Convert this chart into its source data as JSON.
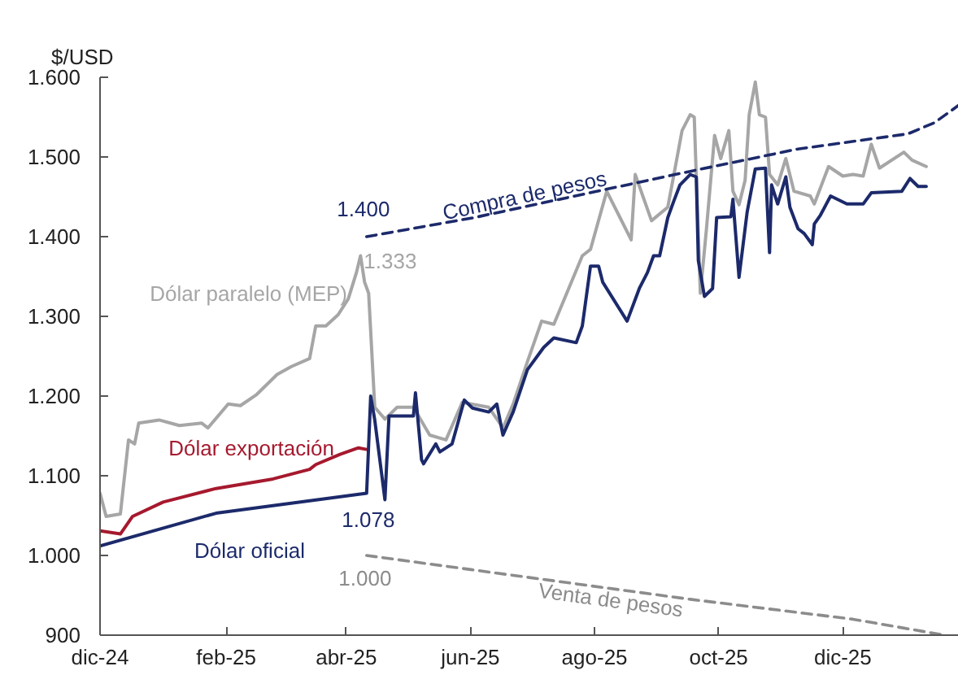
{
  "chart_data": {
    "type": "line",
    "ylabel": "$/USD",
    "xlim": [
      "2024-12-01",
      "2026-01-27"
    ],
    "xticks": [
      {
        "value": "2024-12-01",
        "label": "dic-24"
      },
      {
        "value": "2025-02-01",
        "label": "feb-25"
      },
      {
        "value": "2025-04-01",
        "label": "abr-25"
      },
      {
        "value": "2025-06-01",
        "label": "jun-25"
      },
      {
        "value": "2025-08-01",
        "label": "ago-25"
      },
      {
        "value": "2025-10-01",
        "label": "oct-25"
      },
      {
        "value": "2025-12-01",
        "label": "dic-25"
      }
    ],
    "ylim": [
      900,
      1600
    ],
    "yticks": [
      900,
      {
        "value": 1000,
        "label": "1.000"
      },
      {
        "value": 1100,
        "label": "1.100"
      },
      {
        "value": 1200,
        "label": "1.200"
      },
      {
        "value": 1300,
        "label": "1.300"
      },
      {
        "value": 1400,
        "label": "1.400"
      },
      {
        "value": 1500,
        "label": "1.500"
      },
      {
        "value": 1600,
        "label": "1.600"
      }
    ],
    "grid": false,
    "marker": "none",
    "series": [
      {
        "name": "Dólar paralelo (MEP)",
        "color": "#a6a6a6",
        "line_style": "solid",
        "x": [
          "2024-12-01",
          "2024-12-04",
          "2024-12-11",
          "2024-12-15",
          "2024-12-18",
          "2024-12-20",
          "2024-12-30",
          "2025-01-09",
          "2025-01-20",
          "2025-01-23",
          "2025-02-02",
          "2025-02-08",
          "2025-02-16",
          "2025-02-26",
          "2025-03-05",
          "2025-03-14",
          "2025-03-17",
          "2025-03-22",
          "2025-03-28",
          "2025-04-02",
          "2025-04-06",
          "2025-04-08",
          "2025-04-10",
          "2025-04-12",
          "2025-04-15",
          "2025-04-20",
          "2025-04-26",
          "2025-05-04",
          "2025-05-12",
          "2025-05-20",
          "2025-05-28",
          "2025-06-10",
          "2025-06-17",
          "2025-06-22",
          "2025-06-29",
          "2025-07-06",
          "2025-07-12",
          "2025-07-26",
          "2025-07-30",
          "2025-08-07",
          "2025-08-19",
          "2025-08-21",
          "2025-08-29",
          "2025-09-06",
          "2025-09-09",
          "2025-09-13",
          "2025-09-17",
          "2025-09-19",
          "2025-09-20",
          "2025-09-22",
          "2025-09-25",
          "2025-09-29",
          "2025-10-02",
          "2025-10-06",
          "2025-10-08",
          "2025-10-11",
          "2025-10-14",
          "2025-10-16",
          "2025-10-19",
          "2025-10-21",
          "2025-10-24",
          "2025-10-26",
          "2025-10-30",
          "2025-11-03",
          "2025-11-07",
          "2025-11-15",
          "2025-11-17",
          "2025-11-24",
          "2025-12-01",
          "2025-12-06",
          "2025-12-11",
          "2025-12-15",
          "2025-12-19",
          "2025-12-31",
          "2026-01-04",
          "2026-01-11"
        ],
        "values": [
          1078,
          1049,
          1052,
          1145,
          1140,
          1166,
          1170,
          1163,
          1166,
          1160,
          1190,
          1188,
          1202,
          1227,
          1237,
          1247,
          1288,
          1288,
          1302,
          1322,
          1355,
          1376,
          1343,
          1329,
          1186,
          1171,
          1186,
          1186,
          1151,
          1145,
          1192,
          1186,
          1160,
          1190,
          1243,
          1294,
          1290,
          1376,
          1384,
          1457,
          1396,
          1478,
          1420,
          1437,
          1478,
          1533,
          1553,
          1550,
          1475,
          1329,
          1410,
          1527,
          1498,
          1533,
          1457,
          1440,
          1471,
          1553,
          1594,
          1553,
          1550,
          1478,
          1465,
          1498,
          1457,
          1451,
          1441,
          1488,
          1476,
          1478,
          1476,
          1516,
          1486,
          1506,
          1496,
          1488
        ]
      },
      {
        "name": "Dólar exportación",
        "color": "#a6192e",
        "line_style": "solid",
        "x": [
          "2024-12-01",
          "2024-12-11",
          "2024-12-17",
          "2025-01-01",
          "2025-01-27",
          "2025-02-24",
          "2025-03-14",
          "2025-03-17",
          "2025-03-29",
          "2025-04-07",
          "2025-04-11"
        ],
        "values": [
          1031,
          1027,
          1049,
          1067,
          1084,
          1096,
          1108,
          1114,
          1127,
          1135,
          1133
        ]
      },
      {
        "name": "Dólar oficial",
        "color": "#1c2a6b",
        "line_style": "solid",
        "x": [
          "2024-12-01",
          "2025-01-27",
          "2025-04-11",
          "2025-04-13",
          "2025-04-15",
          "2025-04-20",
          "2025-04-22",
          "2025-05-04",
          "2025-05-05",
          "2025-05-08",
          "2025-05-09",
          "2025-05-15",
          "2025-05-17",
          "2025-05-23",
          "2025-05-29",
          "2025-06-02",
          "2025-06-10",
          "2025-06-14",
          "2025-06-17",
          "2025-06-22",
          "2025-06-29",
          "2025-07-07",
          "2025-07-12",
          "2025-07-23",
          "2025-07-26",
          "2025-07-30",
          "2025-08-03",
          "2025-08-05",
          "2025-08-17",
          "2025-08-23",
          "2025-08-27",
          "2025-08-30",
          "2025-09-02",
          "2025-09-06",
          "2025-09-09",
          "2025-09-12",
          "2025-09-17",
          "2025-09-20",
          "2025-09-21",
          "2025-09-24",
          "2025-09-28",
          "2025-09-30",
          "2025-10-07",
          "2025-10-08",
          "2025-10-11",
          "2025-10-15",
          "2025-10-19",
          "2025-10-24",
          "2025-10-26",
          "2025-10-27",
          "2025-10-30",
          "2025-11-03",
          "2025-11-05",
          "2025-11-09",
          "2025-11-12",
          "2025-11-16",
          "2025-11-17",
          "2025-11-20",
          "2025-11-25",
          "2025-12-03",
          "2025-12-11",
          "2025-12-15",
          "2025-12-30",
          "2026-01-03",
          "2026-01-07",
          "2026-01-11"
        ],
        "values": [
          1012,
          1053,
          1078,
          1200,
          1170,
          1070,
          1175,
          1175,
          1204,
          1120,
          1115,
          1140,
          1130,
          1140,
          1195,
          1185,
          1180,
          1190,
          1151,
          1180,
          1233,
          1261,
          1273,
          1267,
          1288,
          1363,
          1363,
          1343,
          1294,
          1335,
          1355,
          1376,
          1376,
          1424,
          1445,
          1465,
          1478,
          1475,
          1370,
          1325,
          1335,
          1424,
          1425,
          1447,
          1349,
          1431,
          1485,
          1486,
          1380,
          1465,
          1441,
          1475,
          1437,
          1410,
          1404,
          1390,
          1416,
          1427,
          1451,
          1441,
          1441,
          1455,
          1457,
          1473,
          1463,
          1463
        ]
      },
      {
        "name": "Compra de pesos",
        "color": "#1c2a6b",
        "line_style": "dashed",
        "x": [
          "2025-04-11",
          "2025-06-03",
          "2025-09-17",
          "2025-11-09",
          "2026-01-02",
          "2026-01-15",
          "2026-01-27"
        ],
        "values": [
          1400,
          1424,
          1482,
          1510,
          1529,
          1543,
          1565
        ]
      },
      {
        "name": "Venta de pesos",
        "color": "#8c8c8c",
        "line_style": "dashed",
        "x": [
          "2025-04-11",
          "2025-06-02",
          "2025-09-17",
          "2025-12-06",
          "2026-01-20"
        ],
        "values": [
          1000,
          982,
          945,
          920,
          900
        ]
      }
    ],
    "annotations": [
      {
        "text": "1.400",
        "x": "2025-04-11",
        "y": 1400
      },
      {
        "text": "1.333",
        "x": "2025-04-12",
        "y": 1333
      },
      {
        "text": "1.078",
        "x": "2025-04-11",
        "y": 1078
      },
      {
        "text": "1.000",
        "x": "2025-04-11",
        "y": 1000
      }
    ]
  }
}
